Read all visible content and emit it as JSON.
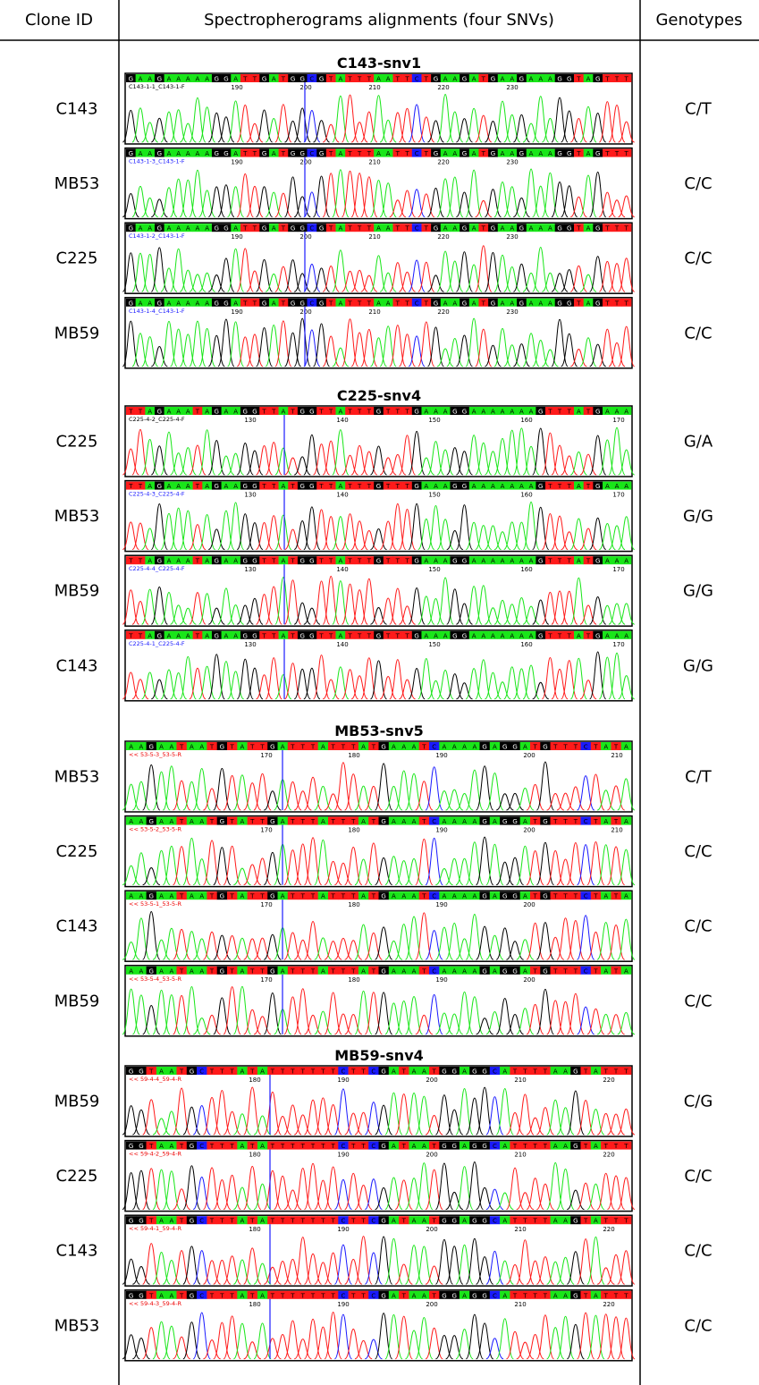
{
  "header": {
    "clone_id": "Clone ID",
    "alignments": "Spectropherograms alignments (four SNVs)",
    "genotypes": "Genotypes"
  },
  "groups": [
    {
      "title": "C143-snv1",
      "sequence": "GAAGAAAAAGGATTGATGGCGTATTTAATTCTGAAGATGAAGAAAGGTAGTTT",
      "rows": [
        {
          "clone": "C143",
          "sample": "C143-1-1_C143-1-F",
          "ticks": [
            190,
            200,
            210,
            220,
            230
          ],
          "genotype": "C/T"
        },
        {
          "clone": "MB53",
          "sample": "C143-1-3_C143-1-F",
          "ticks": [
            190,
            200,
            210,
            220,
            230
          ],
          "genotype": "C/C"
        },
        {
          "clone": "C225",
          "sample": "C143-1-2_C143-1-F",
          "ticks": [
            190,
            200,
            210,
            220,
            230
          ],
          "genotype": "C/C"
        },
        {
          "clone": "MB59",
          "sample": "C143-1-4_C143-1-F",
          "ticks": [
            190,
            200,
            210,
            220,
            230
          ],
          "genotype": "C/C"
        }
      ]
    },
    {
      "title": "C225-snv4",
      "sequence": "TTAGAAATAGAAGGTTATGGTTATTTGTTTGAAAGGAAAAAAAGTTTATGAAA",
      "rows": [
        {
          "clone": "C225",
          "sample": "C225-4-2_C225-4-F",
          "ticks": [
            130,
            140,
            150,
            160,
            170
          ],
          "genotype": "G/A"
        },
        {
          "clone": "MB53",
          "sample": "C225-4-3_C225-4-F",
          "ticks": [
            130,
            140,
            150,
            160,
            170
          ],
          "genotype": "G/G"
        },
        {
          "clone": "MB59",
          "sample": "C225-4-4_C225-4-F",
          "ticks": [
            130,
            140,
            150,
            160,
            170
          ],
          "genotype": "G/G"
        },
        {
          "clone": "C143",
          "sample": "C225-4-1_C225-4-F",
          "ticks": [
            130,
            140,
            150,
            160,
            170
          ],
          "genotype": "G/G"
        }
      ]
    },
    {
      "title": "MB53-snv5",
      "sequence": "AAGAATAATGTATTGATTTATTTATGAAATCAAAAGAGGATGTTTCTATA",
      "rows": [
        {
          "clone": "MB53",
          "sample": "<< 53-5-3_53-5-R",
          "ticks": [
            170,
            180,
            190,
            200,
            210
          ],
          "genotype": "C/T"
        },
        {
          "clone": "C225",
          "sample": "<< 53-5-2_53-5-R",
          "ticks": [
            170,
            180,
            190,
            200,
            210
          ],
          "genotype": "C/C"
        },
        {
          "clone": "C143",
          "sample": "<< 53-5-1_53-5-R",
          "ticks": [
            170,
            180,
            190,
            200
          ],
          "genotype": "C/C"
        },
        {
          "clone": "MB59",
          "sample": "<< 53-5-4_53-5-R",
          "ticks": [
            170,
            180,
            190,
            200
          ],
          "genotype": "C/C"
        }
      ]
    },
    {
      "title": "MB59-snv4",
      "sequence": "GGTAATGCTTTATATTTTTTTCTTCGATAATGGAGGCATTTTAAGTATTT",
      "rows": [
        {
          "clone": "MB59",
          "sample": "<< 59-4-4_59-4-R",
          "ticks": [
            180,
            190,
            200,
            210,
            220
          ],
          "genotype": "C/G"
        },
        {
          "clone": "C225",
          "sample": "<< 59-4-2_59-4-R",
          "ticks": [
            180,
            190,
            200,
            210,
            220
          ],
          "genotype": "C/C"
        },
        {
          "clone": "C143",
          "sample": "<< 59-4-1_59-4-R",
          "ticks": [
            180,
            190,
            200,
            210,
            220
          ],
          "genotype": "C/C"
        },
        {
          "clone": "MB53",
          "sample": "<< 59-4-3_59-4-R",
          "ticks": [
            180,
            190,
            200,
            210,
            220
          ],
          "genotype": "C/C"
        }
      ]
    }
  ]
}
